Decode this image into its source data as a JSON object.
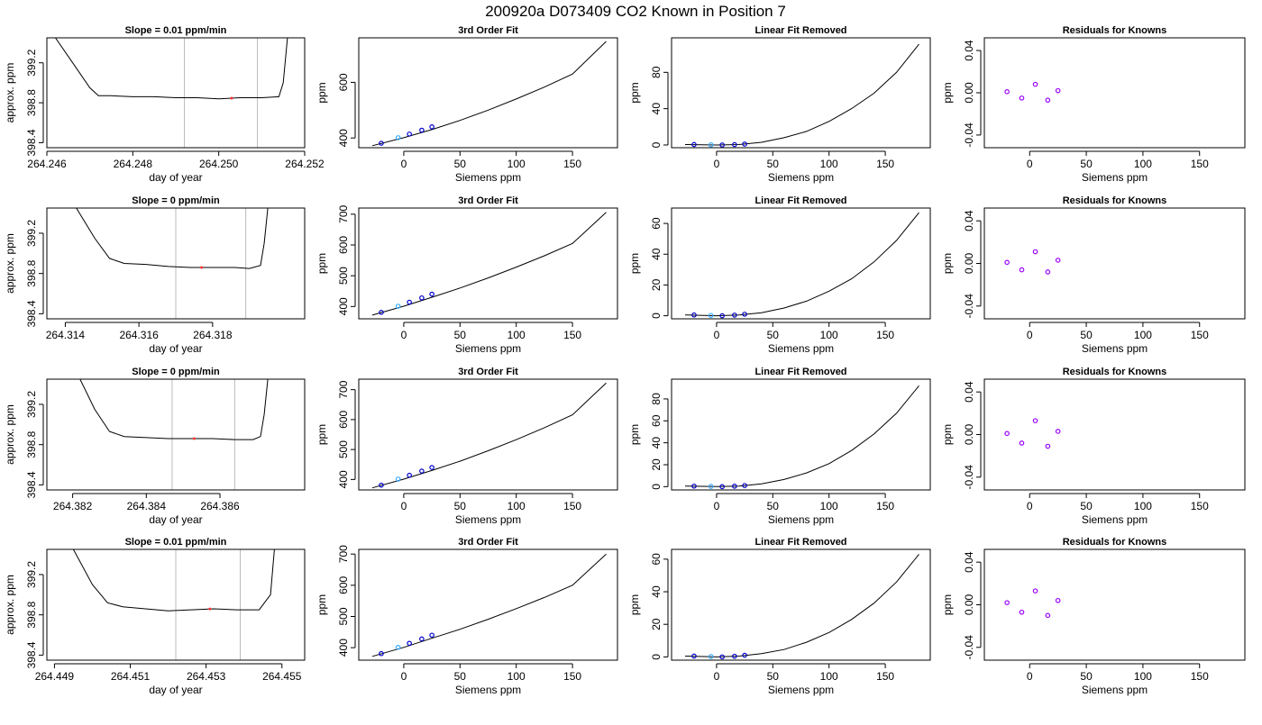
{
  "page_title": "200920a     D073409   CO2 Known in Position  7",
  "colors": {
    "trace": "#000000",
    "marker_border": "#0000cc",
    "marker_known": "#9900ff",
    "marker_ref": "#33aaff",
    "window_line": "#bbbbbb",
    "highlight": "#ff3333"
  },
  "chart_data": [
    {
      "type": "line",
      "title": "Slope =  0.01  ppm/min",
      "xlabel": "day of year",
      "ylabel": "approx. ppm",
      "xlim": [
        264.246,
        264.252
      ],
      "ylim": [
        398.35,
        399.45
      ],
      "x_ticks": [
        264.246,
        264.248,
        264.25,
        264.252
      ],
      "x_tick_labels": [
        "264.246",
        "264.248",
        "264.250",
        "264.252"
      ],
      "y_ticks": [
        398.4,
        398.8,
        399.2
      ],
      "y_tick_labels": [
        "398.4",
        "398.8",
        "399.2"
      ],
      "window_lines": [
        264.2492,
        264.2509
      ],
      "series": [
        {
          "x": [
            264.2462,
            264.2466,
            264.247,
            264.2472,
            264.2475,
            264.248,
            264.2485,
            264.249,
            264.2495,
            264.25,
            264.2505,
            264.251,
            264.2514,
            264.2515,
            264.2516
          ],
          "values": [
            399.45,
            399.2,
            398.95,
            398.87,
            398.87,
            398.86,
            398.86,
            398.85,
            398.85,
            398.84,
            398.85,
            398.85,
            398.86,
            399.0,
            399.45
          ]
        }
      ],
      "highlight_x": 264.2503
    },
    {
      "type": "line",
      "title": "3rd Order Fit",
      "xlabel": "Siemens ppm",
      "ylabel": "ppm",
      "xlim": [
        -40,
        190
      ],
      "ylim": [
        365,
        760
      ],
      "x_ticks": [
        0,
        50,
        100,
        150
      ],
      "x_tick_labels": [
        "0",
        "50",
        "100",
        "150"
      ],
      "y_ticks": [
        400,
        600
      ],
      "y_tick_labels": [
        "400",
        "600"
      ],
      "series": [
        {
          "x": [
            -28,
            0,
            25,
            50,
            75,
            100,
            125,
            150,
            180
          ],
          "values": [
            372,
            401,
            430,
            463,
            500,
            540,
            583,
            630,
            747
          ]
        }
      ],
      "points": [
        {
          "x": -20,
          "y": 381
        },
        {
          "x": -5,
          "y": 401
        },
        {
          "x": 5,
          "y": 414
        },
        {
          "x": 16,
          "y": 428
        },
        {
          "x": 25,
          "y": 440
        }
      ]
    },
    {
      "type": "line",
      "title": "Linear Fit Removed",
      "xlabel": "Siemens ppm",
      "ylabel": "ppm",
      "xlim": [
        -40,
        190
      ],
      "ylim": [
        -3,
        118
      ],
      "x_ticks": [
        0,
        50,
        100,
        150
      ],
      "x_tick_labels": [
        "0",
        "50",
        "100",
        "150"
      ],
      "y_ticks": [
        0,
        40,
        80
      ],
      "y_tick_labels": [
        "0",
        "40",
        "80"
      ],
      "series": [
        {
          "x": [
            -28,
            0,
            20,
            40,
            60,
            80,
            100,
            120,
            140,
            160,
            180
          ],
          "values": [
            0.5,
            0,
            0.5,
            3,
            8,
            15,
            26,
            40,
            57,
            80,
            111
          ]
        }
      ],
      "points": [
        {
          "x": -20,
          "y": 0.5
        },
        {
          "x": -5,
          "y": 0.2
        },
        {
          "x": 5,
          "y": 0
        },
        {
          "x": 16,
          "y": 0.4
        },
        {
          "x": 25,
          "y": 1
        }
      ]
    },
    {
      "type": "scatter",
      "title": "Residuals for Knowns",
      "xlabel": "Siemens ppm",
      "ylabel": "ppm",
      "xlim": [
        -40,
        190
      ],
      "ylim": [
        -0.052,
        0.052
      ],
      "x_ticks": [
        0,
        50,
        100,
        150
      ],
      "x_tick_labels": [
        "0",
        "50",
        "100",
        "150"
      ],
      "y_ticks": [
        -0.04,
        0,
        0.04
      ],
      "y_tick_labels": [
        "-0.04",
        "0.00",
        "0.04"
      ],
      "points": [
        {
          "x": -20,
          "y": 0.001
        },
        {
          "x": -7,
          "y": -0.005
        },
        {
          "x": 5,
          "y": 0.008
        },
        {
          "x": 16,
          "y": -0.007
        },
        {
          "x": 25,
          "y": 0.002
        }
      ]
    },
    {
      "type": "line",
      "title": "Slope =  0  ppm/min",
      "xlabel": "day of year",
      "ylabel": "approx. ppm",
      "xlim": [
        264.3135,
        264.3205
      ],
      "ylim": [
        398.35,
        399.45
      ],
      "x_ticks": [
        264.314,
        264.316,
        264.318
      ],
      "x_tick_labels": [
        "264.314",
        "264.316",
        "264.318"
      ],
      "y_ticks": [
        398.4,
        398.8,
        399.2
      ],
      "y_tick_labels": [
        "398.4",
        "398.8",
        "399.2"
      ],
      "window_lines": [
        264.317,
        264.3189
      ],
      "series": [
        {
          "x": [
            264.3143,
            264.3148,
            264.3152,
            264.3156,
            264.3162,
            264.3168,
            264.3174,
            264.318,
            264.3186,
            264.319,
            264.3193,
            264.3194,
            264.3195
          ],
          "values": [
            399.45,
            399.15,
            398.95,
            398.9,
            398.89,
            398.87,
            398.86,
            398.86,
            398.86,
            398.85,
            398.88,
            399.1,
            399.45
          ]
        }
      ],
      "highlight_x": 264.3177
    },
    {
      "type": "line",
      "title": "3rd Order Fit",
      "xlabel": "Siemens ppm",
      "ylabel": "ppm",
      "xlim": [
        -40,
        190
      ],
      "ylim": [
        360,
        720
      ],
      "x_ticks": [
        0,
        50,
        100,
        150
      ],
      "x_tick_labels": [
        "0",
        "50",
        "100",
        "150"
      ],
      "y_ticks": [
        400,
        500,
        600,
        700
      ],
      "y_tick_labels": [
        "400",
        "500",
        "600",
        "700"
      ],
      "series": [
        {
          "x": [
            -28,
            0,
            25,
            50,
            75,
            100,
            125,
            150,
            180
          ],
          "values": [
            372,
            401,
            430,
            460,
            493,
            528,
            565,
            605,
            706
          ]
        }
      ],
      "points": [
        {
          "x": -20,
          "y": 381
        },
        {
          "x": -5,
          "y": 401
        },
        {
          "x": 5,
          "y": 414
        },
        {
          "x": 16,
          "y": 428
        },
        {
          "x": 25,
          "y": 440
        }
      ]
    },
    {
      "type": "line",
      "title": "Linear Fit Removed",
      "xlabel": "Siemens ppm",
      "ylabel": "ppm",
      "xlim": [
        -40,
        190
      ],
      "ylim": [
        -2,
        70
      ],
      "x_ticks": [
        0,
        50,
        100,
        150
      ],
      "x_tick_labels": [
        "0",
        "50",
        "100",
        "150"
      ],
      "y_ticks": [
        0,
        20,
        40,
        60
      ],
      "y_tick_labels": [
        "0",
        "20",
        "40",
        "60"
      ],
      "series": [
        {
          "x": [
            -28,
            0,
            20,
            40,
            60,
            80,
            100,
            120,
            140,
            160,
            180
          ],
          "values": [
            0.5,
            0,
            0.5,
            2,
            5,
            9.5,
            16,
            24,
            35,
            49,
            67
          ]
        }
      ],
      "points": [
        {
          "x": -20,
          "y": 0.5
        },
        {
          "x": -5,
          "y": 0.2
        },
        {
          "x": 5,
          "y": 0
        },
        {
          "x": 16,
          "y": 0.4
        },
        {
          "x": 25,
          "y": 1
        }
      ]
    },
    {
      "type": "scatter",
      "title": "Residuals for Knowns",
      "xlabel": "Siemens ppm",
      "ylabel": "ppm",
      "xlim": [
        -40,
        190
      ],
      "ylim": [
        -0.052,
        0.052
      ],
      "x_ticks": [
        0,
        50,
        100,
        150
      ],
      "x_tick_labels": [
        "0",
        "50",
        "100",
        "150"
      ],
      "y_ticks": [
        -0.04,
        0,
        0.04
      ],
      "y_tick_labels": [
        "-0.04",
        "0.00",
        "0.04"
      ],
      "points": [
        {
          "x": -20,
          "y": 0.001
        },
        {
          "x": -7,
          "y": -0.006
        },
        {
          "x": 5,
          "y": 0.011
        },
        {
          "x": 16,
          "y": -0.008
        },
        {
          "x": 25,
          "y": 0.003
        }
      ]
    },
    {
      "type": "line",
      "title": "Slope =  0  ppm/min",
      "xlabel": "day of year",
      "ylabel": "approx. ppm",
      "xlim": [
        264.3813,
        264.3883
      ],
      "ylim": [
        398.35,
        399.45
      ],
      "x_ticks": [
        264.382,
        264.384,
        264.386
      ],
      "x_tick_labels": [
        "264.382",
        "264.384",
        "264.386"
      ],
      "y_ticks": [
        398.4,
        398.8,
        399.2
      ],
      "y_tick_labels": [
        "398.4",
        "398.8",
        "399.2"
      ],
      "window_lines": [
        264.3847,
        264.3864
      ],
      "series": [
        {
          "x": [
            264.3822,
            264.3826,
            264.383,
            264.3834,
            264.384,
            264.3846,
            264.3852,
            264.3858,
            264.3864,
            264.3869,
            264.3871,
            264.3872,
            264.3873
          ],
          "values": [
            399.45,
            399.15,
            398.93,
            398.88,
            398.87,
            398.86,
            398.86,
            398.86,
            398.85,
            398.85,
            398.88,
            399.1,
            399.45
          ]
        }
      ],
      "highlight_x": 264.3853
    },
    {
      "type": "line",
      "title": "3rd Order Fit",
      "xlabel": "Siemens ppm",
      "ylabel": "ppm",
      "xlim": [
        -40,
        190
      ],
      "ylim": [
        365,
        735
      ],
      "x_ticks": [
        0,
        50,
        100,
        150
      ],
      "x_tick_labels": [
        "0",
        "50",
        "100",
        "150"
      ],
      "y_ticks": [
        400,
        500,
        600,
        700
      ],
      "y_tick_labels": [
        "400",
        "500",
        "600",
        "700"
      ],
      "series": [
        {
          "x": [
            -28,
            0,
            25,
            50,
            75,
            100,
            125,
            150,
            180
          ],
          "values": [
            372,
            401,
            430,
            461,
            496,
            533,
            573,
            616,
            722
          ]
        }
      ],
      "points": [
        {
          "x": -20,
          "y": 381
        },
        {
          "x": -5,
          "y": 401
        },
        {
          "x": 5,
          "y": 414
        },
        {
          "x": 16,
          "y": 428
        },
        {
          "x": 25,
          "y": 440
        }
      ]
    },
    {
      "type": "line",
      "title": "Linear Fit Removed",
      "xlabel": "Siemens ppm",
      "ylabel": "ppm",
      "xlim": [
        -40,
        190
      ],
      "ylim": [
        -3,
        98
      ],
      "x_ticks": [
        0,
        50,
        100,
        150
      ],
      "x_tick_labels": [
        "0",
        "50",
        "100",
        "150"
      ],
      "y_ticks": [
        0,
        20,
        40,
        60,
        80
      ],
      "y_tick_labels": [
        "0",
        "20",
        "40",
        "60",
        "80"
      ],
      "series": [
        {
          "x": [
            -28,
            0,
            20,
            40,
            60,
            80,
            100,
            120,
            140,
            160,
            180
          ],
          "values": [
            0.5,
            0,
            0.5,
            2.5,
            6.5,
            12.5,
            21,
            33,
            48,
            67,
            92
          ]
        }
      ],
      "points": [
        {
          "x": -20,
          "y": 0.5
        },
        {
          "x": -5,
          "y": 0.2
        },
        {
          "x": 5,
          "y": 0
        },
        {
          "x": 16,
          "y": 0.4
        },
        {
          "x": 25,
          "y": 1
        }
      ]
    },
    {
      "type": "scatter",
      "title": "Residuals for Knowns",
      "xlabel": "Siemens ppm",
      "ylabel": "ppm",
      "xlim": [
        -40,
        190
      ],
      "ylim": [
        -0.052,
        0.052
      ],
      "x_ticks": [
        0,
        50,
        100,
        150
      ],
      "x_tick_labels": [
        "0",
        "50",
        "100",
        "150"
      ],
      "y_ticks": [
        -0.04,
        0,
        0.04
      ],
      "y_tick_labels": [
        "-0.04",
        "0.00",
        "0.04"
      ],
      "points": [
        {
          "x": -20,
          "y": 0.001
        },
        {
          "x": -7,
          "y": -0.008
        },
        {
          "x": 5,
          "y": 0.013
        },
        {
          "x": 16,
          "y": -0.011
        },
        {
          "x": 25,
          "y": 0.003
        }
      ]
    },
    {
      "type": "line",
      "title": "Slope =  0.01  ppm/min",
      "xlabel": "day of year",
      "ylabel": "approx. ppm",
      "xlim": [
        264.4488,
        264.4556
      ],
      "ylim": [
        398.35,
        399.45
      ],
      "x_ticks": [
        264.449,
        264.451,
        264.453,
        264.455
      ],
      "x_tick_labels": [
        "264.449",
        "264.451",
        "264.453",
        "264.455"
      ],
      "y_ticks": [
        398.4,
        398.8,
        399.2
      ],
      "y_tick_labels": [
        "398.4",
        "398.8",
        "399.2"
      ],
      "window_lines": [
        264.4522,
        264.4539
      ],
      "series": [
        {
          "x": [
            264.4495,
            264.45,
            264.4504,
            264.4508,
            264.4514,
            264.452,
            264.4526,
            264.4532,
            264.4538,
            264.4544,
            264.4547,
            264.4548
          ],
          "values": [
            399.45,
            399.1,
            398.92,
            398.88,
            398.86,
            398.84,
            398.85,
            398.86,
            398.85,
            398.85,
            399.0,
            399.45
          ]
        }
      ],
      "highlight_x": 264.4531
    },
    {
      "type": "line",
      "title": "3rd Order Fit",
      "xlabel": "Siemens ppm",
      "ylabel": "ppm",
      "xlim": [
        -40,
        190
      ],
      "ylim": [
        360,
        715
      ],
      "x_ticks": [
        0,
        50,
        100,
        150
      ],
      "x_tick_labels": [
        "0",
        "50",
        "100",
        "150"
      ],
      "y_ticks": [
        400,
        500,
        600,
        700
      ],
      "y_tick_labels": [
        "400",
        "500",
        "600",
        "700"
      ],
      "series": [
        {
          "x": [
            -28,
            0,
            25,
            50,
            75,
            100,
            125,
            150,
            180
          ],
          "values": [
            372,
            401,
            430,
            459,
            491,
            525,
            561,
            600,
            700
          ]
        }
      ],
      "points": [
        {
          "x": -20,
          "y": 381
        },
        {
          "x": -5,
          "y": 401
        },
        {
          "x": 5,
          "y": 414
        },
        {
          "x": 16,
          "y": 428
        },
        {
          "x": 25,
          "y": 440
        }
      ]
    },
    {
      "type": "line",
      "title": "Linear Fit Removed",
      "xlabel": "Siemens ppm",
      "ylabel": "ppm",
      "xlim": [
        -40,
        190
      ],
      "ylim": [
        -2,
        66
      ],
      "x_ticks": [
        0,
        50,
        100,
        150
      ],
      "x_tick_labels": [
        "0",
        "50",
        "100",
        "150"
      ],
      "y_ticks": [
        0,
        20,
        40,
        60
      ],
      "y_tick_labels": [
        "0",
        "20",
        "40",
        "60"
      ],
      "series": [
        {
          "x": [
            -28,
            0,
            20,
            40,
            60,
            80,
            100,
            120,
            140,
            160,
            180
          ],
          "values": [
            0.5,
            0,
            0.5,
            2,
            4.5,
            9,
            15,
            23,
            33,
            46,
            63
          ]
        }
      ],
      "points": [
        {
          "x": -20,
          "y": 0.5
        },
        {
          "x": -5,
          "y": 0.2
        },
        {
          "x": 5,
          "y": 0
        },
        {
          "x": 16,
          "y": 0.4
        },
        {
          "x": 25,
          "y": 1
        }
      ]
    },
    {
      "type": "scatter",
      "title": "Residuals for Knowns",
      "xlabel": "Siemens ppm",
      "ylabel": "ppm",
      "xlim": [
        -40,
        190
      ],
      "ylim": [
        -0.052,
        0.052
      ],
      "x_ticks": [
        0,
        50,
        100,
        150
      ],
      "x_tick_labels": [
        "0",
        "50",
        "100",
        "150"
      ],
      "y_ticks": [
        -0.04,
        0,
        0.04
      ],
      "y_tick_labels": [
        "-0.04",
        "0.00",
        "0.04"
      ],
      "points": [
        {
          "x": -20,
          "y": 0.002
        },
        {
          "x": -7,
          "y": -0.007
        },
        {
          "x": 5,
          "y": 0.013
        },
        {
          "x": 16,
          "y": -0.01
        },
        {
          "x": 25,
          "y": 0.004
        }
      ]
    }
  ]
}
